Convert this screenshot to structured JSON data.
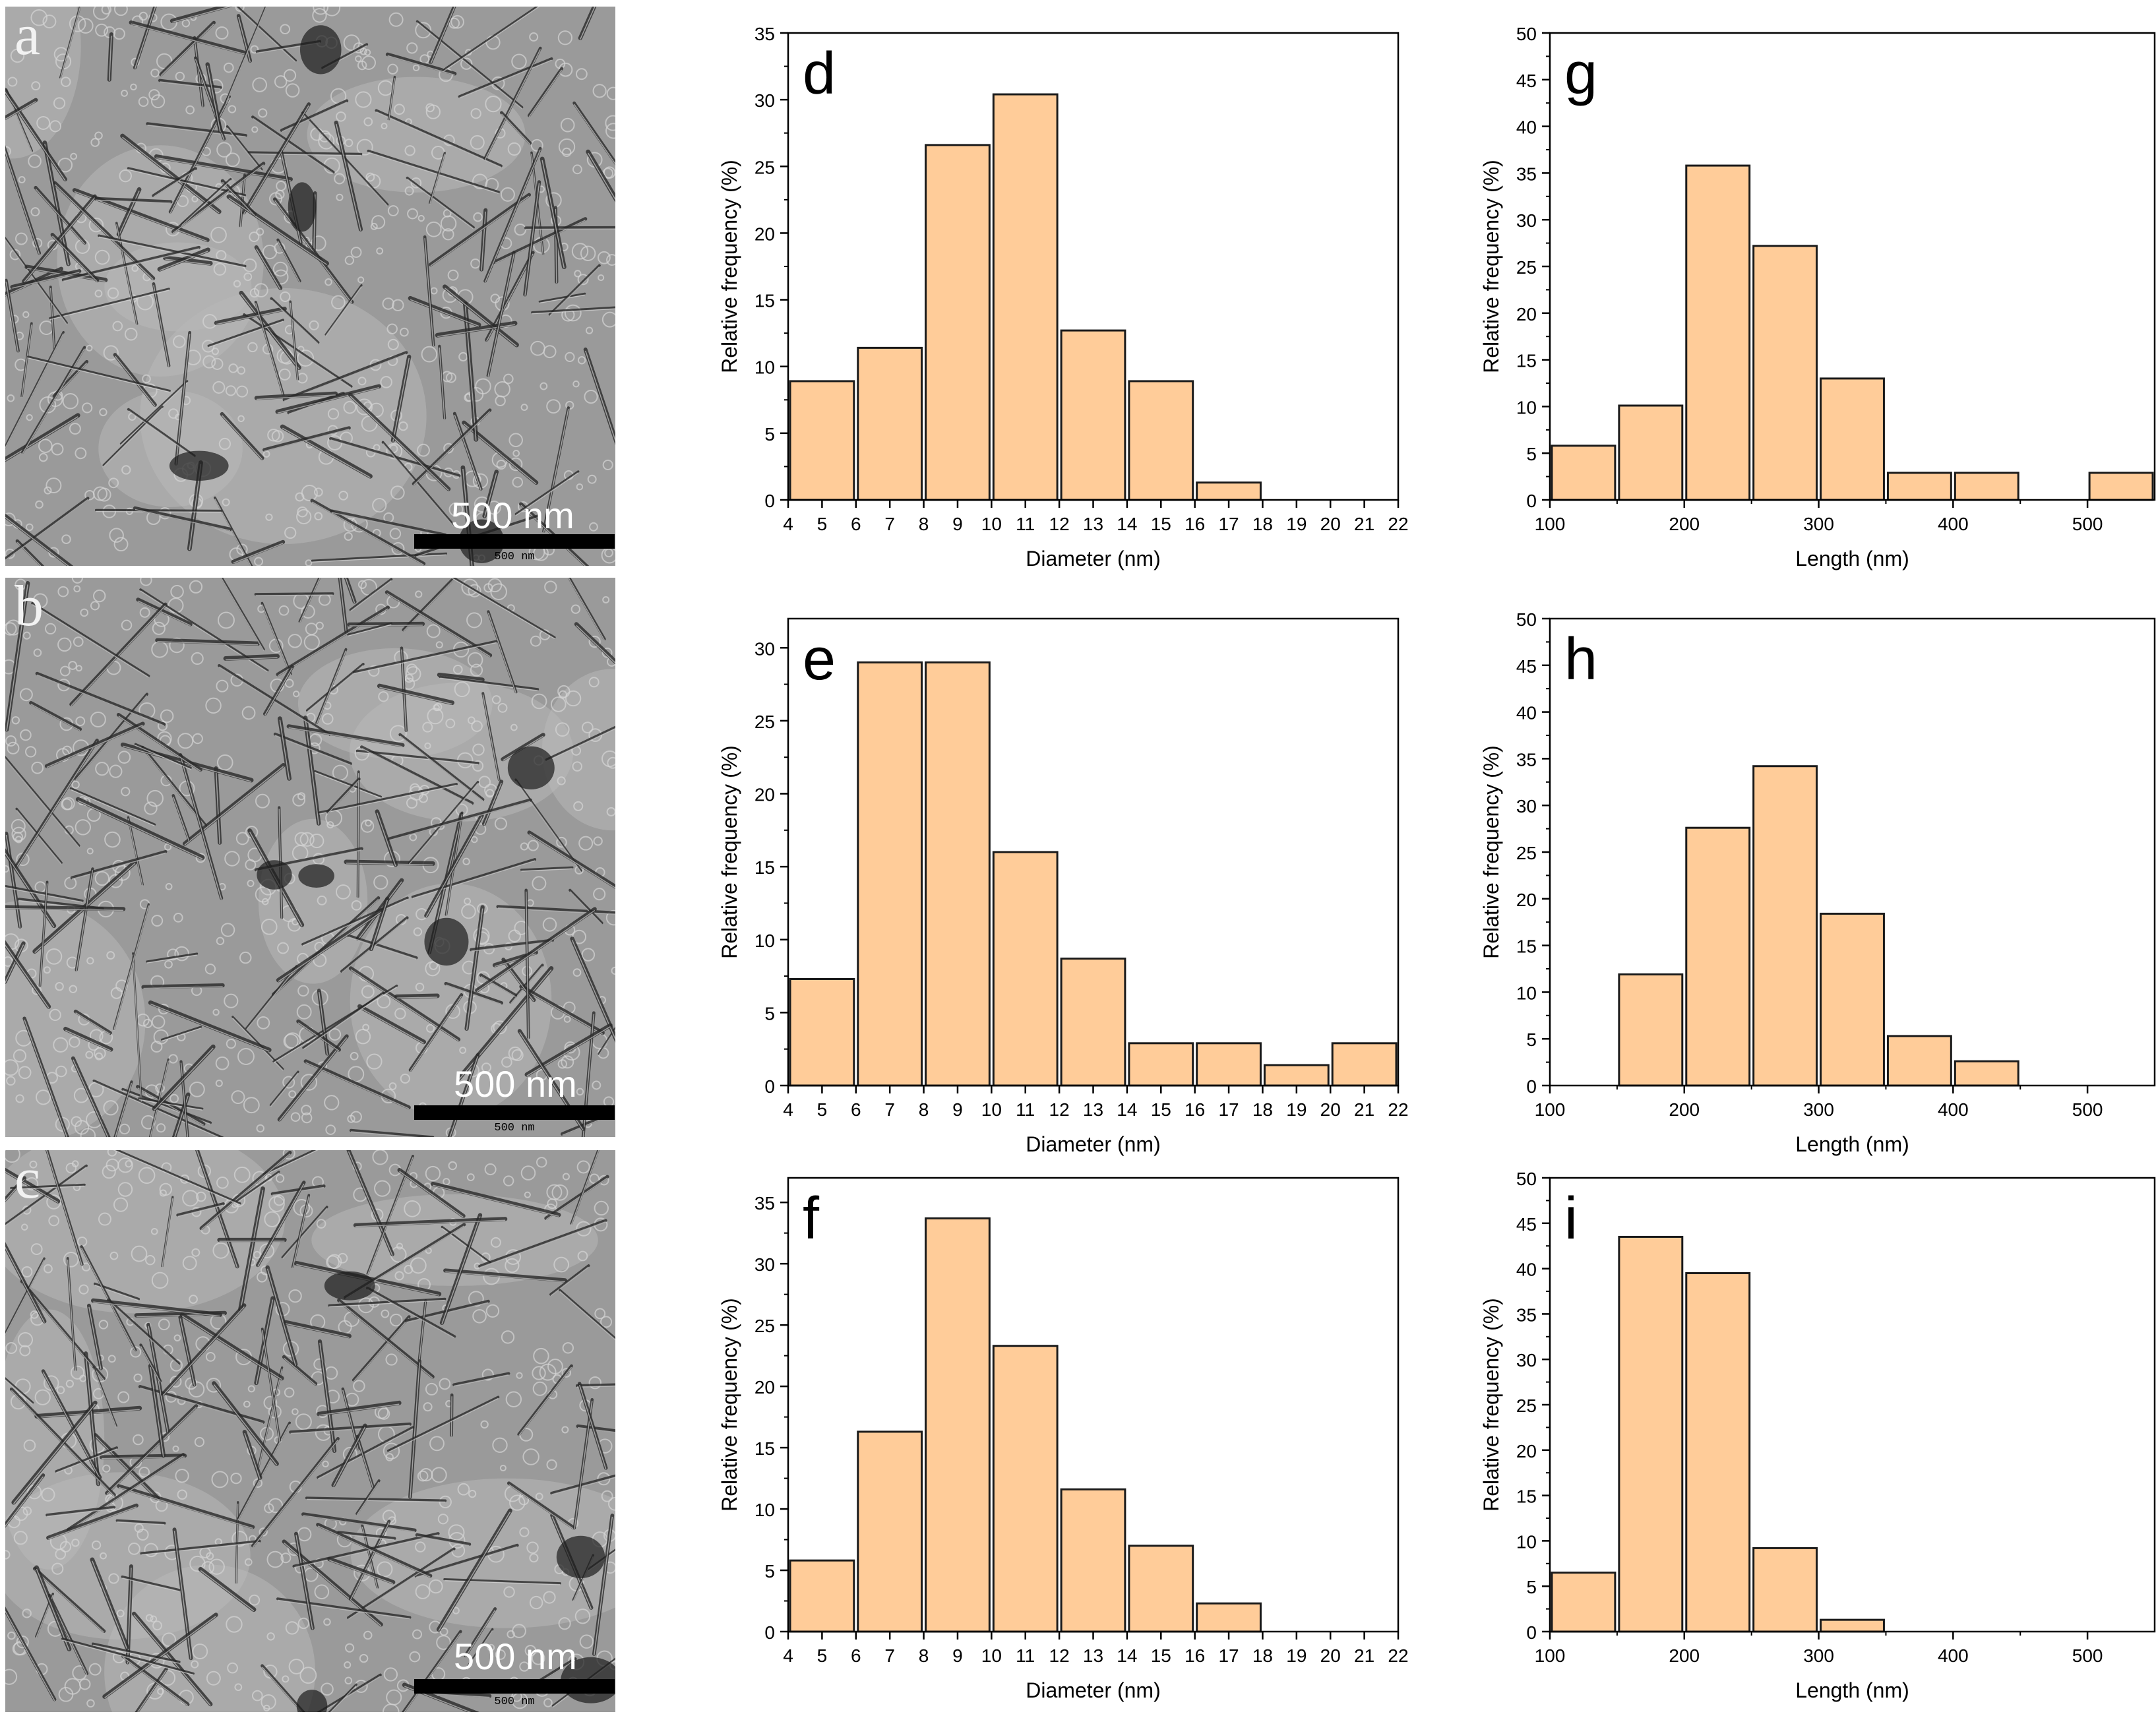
{
  "colors": {
    "bar_fill": "#ffcc99",
    "bar_stroke": "#1a1a1a",
    "axis": "#000000",
    "tem_background": "#9a9a9a"
  },
  "tem_panels": [
    {
      "letter": "a",
      "scale_text": "500 nm",
      "scale_small": "500 nm"
    },
    {
      "letter": "b",
      "scale_text": "500 nm",
      "scale_small": "500 nm"
    },
    {
      "letter": "c",
      "scale_text": "500 nm",
      "scale_small": "500 nm"
    }
  ],
  "chart_data": [
    {
      "panel": "d",
      "type": "bar",
      "xlabel": "Diameter (nm)",
      "ylabel": "Relative frequency (%)",
      "xlim": [
        4,
        22
      ],
      "ylim": [
        0,
        35
      ],
      "yticks": [
        0,
        5,
        10,
        15,
        20,
        25,
        30,
        35
      ],
      "xticks": [
        4,
        5,
        6,
        7,
        8,
        9,
        10,
        11,
        12,
        13,
        14,
        15,
        16,
        17,
        18,
        19,
        20,
        21,
        22
      ],
      "bin_width": 2,
      "bins": [
        {
          "start": 4,
          "value": 8.9
        },
        {
          "start": 6,
          "value": 11.4
        },
        {
          "start": 8,
          "value": 26.6
        },
        {
          "start": 10,
          "value": 30.4
        },
        {
          "start": 12,
          "value": 12.7
        },
        {
          "start": 14,
          "value": 8.9
        },
        {
          "start": 16,
          "value": 1.3
        },
        {
          "start": 18,
          "value": 0
        },
        {
          "start": 20,
          "value": 0
        }
      ]
    },
    {
      "panel": "g",
      "type": "bar",
      "xlabel": "Length (nm)",
      "ylabel": "Relative frequency (%)",
      "xlim": [
        100,
        550
      ],
      "ylim": [
        0,
        50
      ],
      "yticks": [
        0,
        5,
        10,
        15,
        20,
        25,
        30,
        35,
        40,
        45,
        50
      ],
      "xticks": [
        100,
        200,
        300,
        400,
        500
      ],
      "bin_width": 50,
      "bins": [
        {
          "start": 100,
          "value": 5.8
        },
        {
          "start": 150,
          "value": 10.1
        },
        {
          "start": 200,
          "value": 35.8
        },
        {
          "start": 250,
          "value": 27.2
        },
        {
          "start": 300,
          "value": 13.0
        },
        {
          "start": 350,
          "value": 2.9
        },
        {
          "start": 400,
          "value": 2.9
        },
        {
          "start": 450,
          "value": 0
        },
        {
          "start": 500,
          "value": 2.9
        }
      ]
    },
    {
      "panel": "e",
      "type": "bar",
      "xlabel": "Diameter (nm)",
      "ylabel": "Relative frequency (%)",
      "xlim": [
        4,
        22
      ],
      "ylim": [
        0,
        32
      ],
      "yticks": [
        0,
        5,
        10,
        15,
        20,
        25,
        30
      ],
      "xticks": [
        4,
        5,
        6,
        7,
        8,
        9,
        10,
        11,
        12,
        13,
        14,
        15,
        16,
        17,
        18,
        19,
        20,
        21,
        22
      ],
      "bin_width": 2,
      "bins": [
        {
          "start": 4,
          "value": 7.3
        },
        {
          "start": 6,
          "value": 29.0
        },
        {
          "start": 8,
          "value": 29.0
        },
        {
          "start": 10,
          "value": 16.0
        },
        {
          "start": 12,
          "value": 8.7
        },
        {
          "start": 14,
          "value": 2.9
        },
        {
          "start": 16,
          "value": 2.9
        },
        {
          "start": 18,
          "value": 1.4
        },
        {
          "start": 20,
          "value": 2.9
        }
      ]
    },
    {
      "panel": "h",
      "type": "bar",
      "xlabel": "Length (nm)",
      "ylabel": "Relative frequency (%)",
      "xlim": [
        100,
        550
      ],
      "ylim": [
        0,
        50
      ],
      "yticks": [
        0,
        5,
        10,
        15,
        20,
        25,
        30,
        35,
        40,
        45,
        50
      ],
      "xticks": [
        100,
        200,
        300,
        400,
        500
      ],
      "bin_width": 50,
      "bins": [
        {
          "start": 100,
          "value": 0
        },
        {
          "start": 150,
          "value": 11.9
        },
        {
          "start": 200,
          "value": 27.6
        },
        {
          "start": 250,
          "value": 34.2
        },
        {
          "start": 300,
          "value": 18.4
        },
        {
          "start": 350,
          "value": 5.3
        },
        {
          "start": 400,
          "value": 2.6
        },
        {
          "start": 450,
          "value": 0
        },
        {
          "start": 500,
          "value": 0
        }
      ]
    },
    {
      "panel": "f",
      "type": "bar",
      "xlabel": "Diameter (nm)",
      "ylabel": "Relative frequency (%)",
      "xlim": [
        4,
        22
      ],
      "ylim": [
        0,
        37
      ],
      "yticks": [
        0,
        5,
        10,
        15,
        20,
        25,
        30,
        35
      ],
      "xticks": [
        4,
        5,
        6,
        7,
        8,
        9,
        10,
        11,
        12,
        13,
        14,
        15,
        16,
        17,
        18,
        19,
        20,
        21,
        22
      ],
      "bin_width": 2,
      "bins": [
        {
          "start": 4,
          "value": 5.8
        },
        {
          "start": 6,
          "value": 16.3
        },
        {
          "start": 8,
          "value": 33.7
        },
        {
          "start": 10,
          "value": 23.3
        },
        {
          "start": 12,
          "value": 11.6
        },
        {
          "start": 14,
          "value": 7.0
        },
        {
          "start": 16,
          "value": 2.3
        },
        {
          "start": 18,
          "value": 0
        },
        {
          "start": 20,
          "value": 0
        }
      ]
    },
    {
      "panel": "i",
      "type": "bar",
      "xlabel": "Length (nm)",
      "ylabel": "Relative frequency (%)",
      "xlim": [
        100,
        550
      ],
      "ylim": [
        0,
        50
      ],
      "yticks": [
        0,
        5,
        10,
        15,
        20,
        25,
        30,
        35,
        40,
        45,
        50
      ],
      "xticks": [
        100,
        200,
        300,
        400,
        500
      ],
      "bin_width": 50,
      "bins": [
        {
          "start": 100,
          "value": 6.5
        },
        {
          "start": 150,
          "value": 43.5
        },
        {
          "start": 200,
          "value": 39.5
        },
        {
          "start": 250,
          "value": 9.2
        },
        {
          "start": 300,
          "value": 1.3
        },
        {
          "start": 350,
          "value": 0
        },
        {
          "start": 400,
          "value": 0
        },
        {
          "start": 450,
          "value": 0
        },
        {
          "start": 500,
          "value": 0
        }
      ]
    }
  ]
}
